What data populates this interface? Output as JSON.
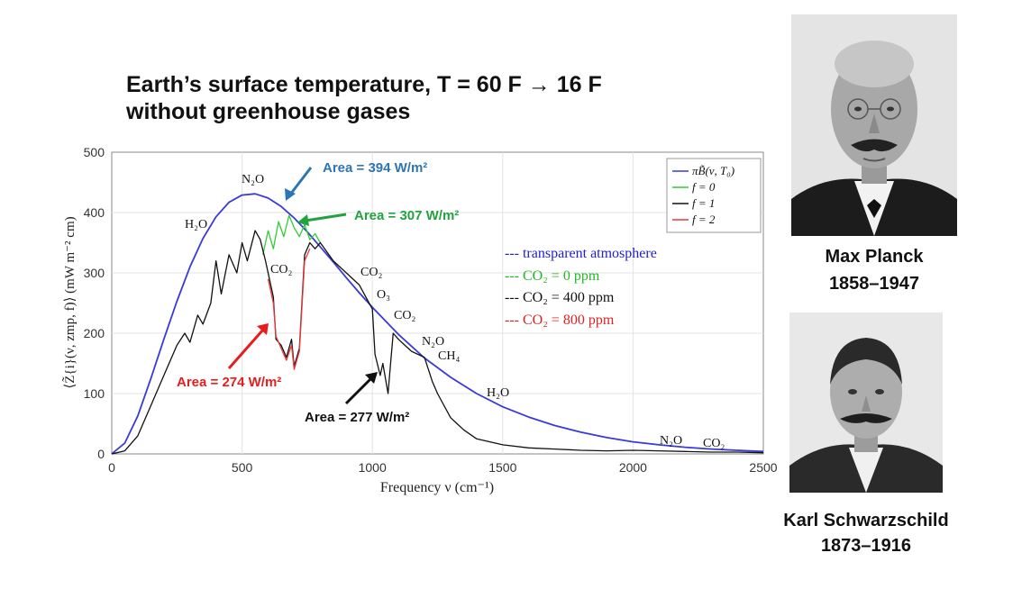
{
  "slide": {
    "title_line1": "Earth’s surface temperature, T = 60 F → 16 F",
    "title_line2": "without greenhouse gases"
  },
  "portraits": [
    {
      "name": "Max Planck",
      "years": "1858–1947"
    },
    {
      "name": "Karl Schwarzschild",
      "years": "1873–1916"
    }
  ],
  "colors": {
    "planck": "#3a3ad8",
    "f0": "#33cc33",
    "f1": "#111111",
    "f2": "#e83a3a",
    "area_blue": "#2e75b6",
    "area_green": "#22a340",
    "area_red": "#e81c1c"
  },
  "chart_data": {
    "type": "line",
    "xlabel": "Frequency ν (cm⁻¹)",
    "ylabel": "⟨Z̃{i}(ν, zmp, f)⟩ (mW m⁻² cm)",
    "xlim": [
      0,
      2500
    ],
    "ylim": [
      0,
      500
    ],
    "x_ticks": [
      0,
      500,
      1000,
      1500,
      2000,
      2500
    ],
    "y_ticks": [
      0,
      100,
      200,
      300,
      400,
      500
    ],
    "grid": true,
    "legend_position": "top-right",
    "legend": [
      "πB̃(ν, T₀)",
      "f = 0",
      "f = 1",
      "f = 2"
    ],
    "series": [
      {
        "name": "πB̃(ν, T₀)",
        "color": "#3a3ad8",
        "x": [
          0,
          50,
          100,
          150,
          200,
          250,
          300,
          350,
          400,
          450,
          500,
          550,
          600,
          650,
          700,
          750,
          800,
          850,
          900,
          950,
          1000,
          1100,
          1200,
          1300,
          1400,
          1500,
          1600,
          1700,
          1800,
          1900,
          2000,
          2100,
          2200,
          2300,
          2400,
          2500
        ],
        "y": [
          0,
          18,
          63,
          125,
          190,
          253,
          310,
          357,
          393,
          417,
          429,
          431,
          424,
          410,
          391,
          368,
          343,
          318,
          292,
          267,
          243,
          198,
          159,
          127,
          100,
          78,
          61,
          47,
          36,
          27,
          20,
          15,
          11,
          8,
          6,
          4
        ]
      },
      {
        "name": "f = 0",
        "color": "#33cc33",
        "x": [
          580,
          600,
          620,
          640,
          660,
          680,
          700,
          720,
          740,
          760,
          780,
          800
        ],
        "y": [
          330,
          370,
          340,
          385,
          360,
          395,
          375,
          360,
          380,
          355,
          365,
          350
        ]
      },
      {
        "name": "f = 1",
        "color": "#111111",
        "x": [
          0,
          50,
          100,
          150,
          200,
          220,
          250,
          280,
          300,
          330,
          350,
          380,
          400,
          420,
          450,
          480,
          500,
          520,
          550,
          570,
          590,
          600,
          620,
          630,
          650,
          670,
          690,
          700,
          710,
          720,
          740,
          760,
          780,
          800,
          850,
          900,
          950,
          1000,
          1010,
          1030,
          1040,
          1060,
          1070,
          1080,
          1100,
          1150,
          1200,
          1230,
          1250,
          1300,
          1350,
          1400,
          1500,
          1600,
          1700,
          1800,
          1900,
          2000,
          2100,
          2200,
          2300,
          2400,
          2500
        ],
        "y": [
          0,
          5,
          30,
          80,
          130,
          150,
          180,
          200,
          185,
          230,
          215,
          250,
          320,
          265,
          330,
          300,
          350,
          320,
          370,
          355,
          320,
          300,
          260,
          190,
          180,
          160,
          190,
          145,
          160,
          175,
          330,
          350,
          340,
          350,
          320,
          300,
          280,
          240,
          165,
          130,
          150,
          100,
          150,
          200,
          190,
          170,
          160,
          120,
          100,
          60,
          40,
          25,
          15,
          10,
          8,
          6,
          5,
          6,
          5,
          4,
          3,
          3,
          2
        ]
      },
      {
        "name": "f = 2",
        "color": "#e83a3a",
        "x": [
          600,
          620,
          630,
          650,
          670,
          690,
          700,
          710,
          720,
          740,
          760
        ],
        "y": [
          290,
          250,
          195,
          175,
          155,
          180,
          140,
          155,
          170,
          320,
          340
        ]
      }
    ],
    "annotations": [
      {
        "text": "Area = 394 W/m²",
        "color": "#2e75b6"
      },
      {
        "text": "Area = 307 W/m²",
        "color": "#22a340"
      },
      {
        "text": "Area = 274 W/m²",
        "color": "#e81c1c"
      },
      {
        "text": "Area = 277 W/m²",
        "color": "#111111"
      }
    ],
    "molecule_labels": [
      "N₂O",
      "H₂O",
      "CO₂",
      "CO₂",
      "O₃",
      "CO₂",
      "N₂O",
      "CH₄",
      "H₂O",
      "N₂O",
      "CO₂"
    ],
    "scenario_legend": [
      {
        "text": "--- transparent atmosphere",
        "color": "#2020cc"
      },
      {
        "text": "--- CO₂ = 0 ppm",
        "color": "#22b822"
      },
      {
        "text": "--- CO₂ = 400 ppm",
        "color": "#111111"
      },
      {
        "text": "--- CO₂ = 800 ppm",
        "color": "#dd2222"
      }
    ]
  }
}
